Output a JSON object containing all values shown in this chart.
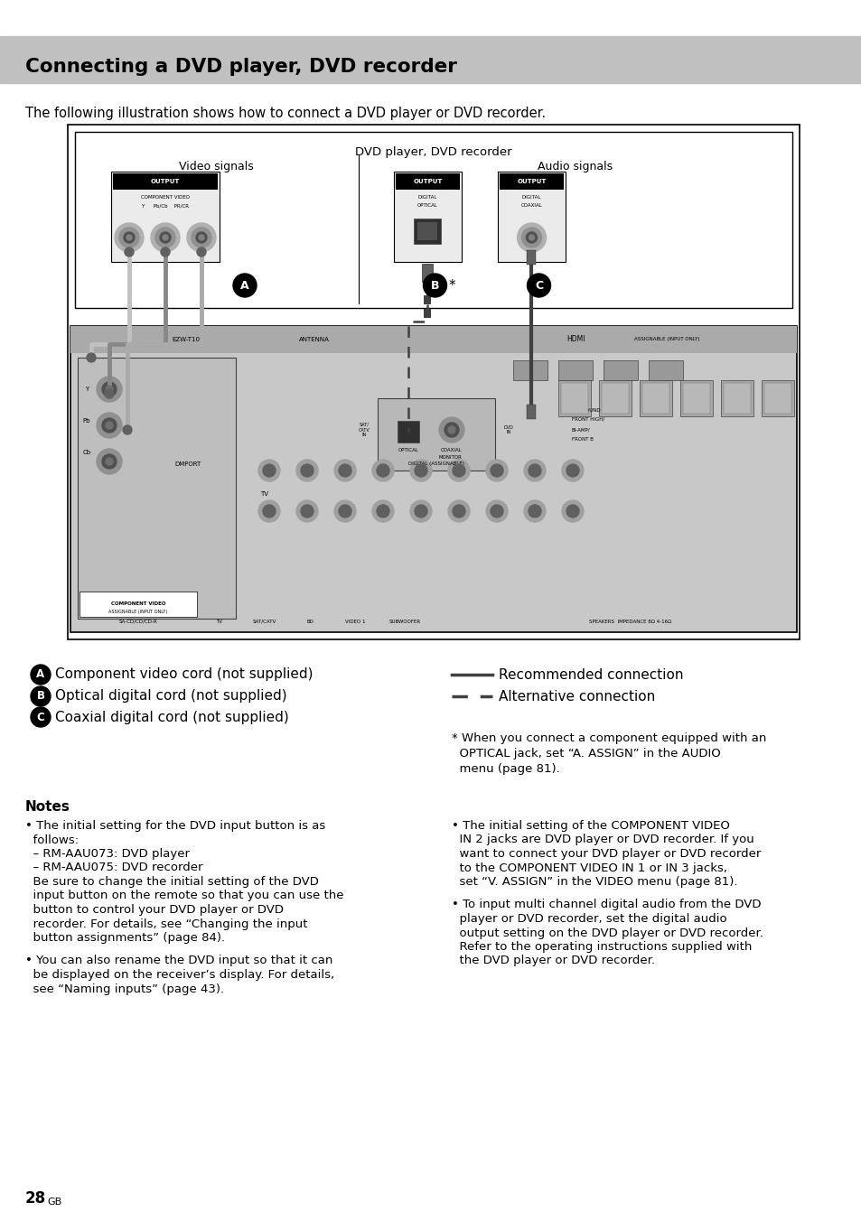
{
  "page_title": "Connecting a DVD player, DVD recorder",
  "subtitle": "The following illustration shows how to connect a DVD player or DVD recorder.",
  "dvd_box_title": "DVD player, DVD recorder",
  "video_signals_label": "Video signals",
  "audio_signals_label": "Audio signals",
  "legend_A": "Component video cord (not supplied)",
  "legend_B": "Optical digital cord (not supplied)",
  "legend_C": "Coaxial digital cord (not supplied)",
  "legend_rec": "Recommended connection",
  "legend_alt": "Alternative connection",
  "fn_line1": "* When you connect a component equipped with an",
  "fn_line2": "  OPTICAL jack, set “A. ASSIGN” in the AUDIO",
  "fn_line3": "  menu (page 81).",
  "notes_title": "Notes",
  "note1_lines": [
    "• The initial setting for the DVD input button is as",
    "  follows:",
    "  – RM-AAU073: DVD player",
    "  – RM-AAU075: DVD recorder",
    "  Be sure to change the initial setting of the DVD",
    "  input button on the remote so that you can use the",
    "  button to control your DVD player or DVD",
    "  recorder. For details, see “Changing the input",
    "  button assignments” (page 84)."
  ],
  "note2_lines": [
    "• You can also rename the DVD input so that it can",
    "  be displayed on the receiver’s display. For details,",
    "  see “Naming inputs” (page 43)."
  ],
  "note3_lines": [
    "• The initial setting of the COMPONENT VIDEO",
    "  IN 2 jacks are DVD player or DVD recorder. If you",
    "  want to connect your DVD player or DVD recorder",
    "  to the COMPONENT VIDEO IN 1 or IN 3 jacks,",
    "  set “V. ASSIGN” in the VIDEO menu (page 81)."
  ],
  "note4_lines": [
    "• To input multi channel digital audio from the DVD",
    "  player or DVD recorder, set the digital audio",
    "  output setting on the DVD player or DVD recorder.",
    "  Refer to the operating instructions supplied with",
    "  the DVD player or DVD recorder."
  ],
  "page_number": "28",
  "page_suffix": "GB",
  "header_bg": "#c0c0c0",
  "white": "#ffffff",
  "black": "#000000",
  "dark_gray": "#404040",
  "mid_gray": "#808080",
  "light_gray": "#d4d4d4",
  "receiver_bg": "#c8c8c8",
  "very_light_gray": "#ebebeb"
}
